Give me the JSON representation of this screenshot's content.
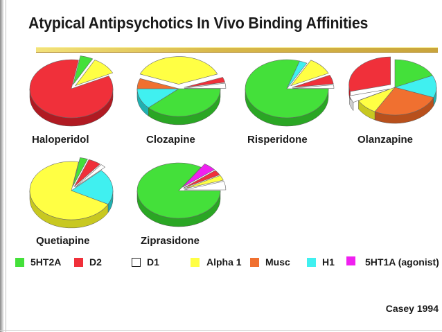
{
  "title": "Atypical Antipsychotics In Vivo Binding Affinities",
  "source": "Casey 1994",
  "receptors": [
    {
      "key": "5HT2A",
      "label": "5HT2A",
      "color": "#44e03a",
      "side": "#2aa624"
    },
    {
      "key": "D2",
      "label": "D2",
      "color": "#f0303a",
      "side": "#b01a22"
    },
    {
      "key": "D1",
      "label": "D1",
      "color": "#ffffff",
      "side": "#cfcfcf"
    },
    {
      "key": "Alpha1",
      "label": "Alpha 1",
      "color": "#ffff44",
      "side": "#c8c820"
    },
    {
      "key": "Musc",
      "label": "Musc",
      "color": "#f07030",
      "side": "#b8501c"
    },
    {
      "key": "H1",
      "label": "H1",
      "color": "#40f0f0",
      "side": "#20b0b0"
    },
    {
      "key": "5HT1A",
      "label": "5HT1A (agonist)",
      "color": "#f020f0",
      "side": "#b010b0"
    }
  ],
  "chart_data": {
    "type": "pie",
    "title": "Atypical Antipsychotics In Vivo Binding Affinities",
    "series": [
      {
        "name": "Haloperidol",
        "values": {
          "5HT2A": 5,
          "Alpha1": 10,
          "D2": 85
        }
      },
      {
        "name": "Clozapine",
        "values": {
          "5HT2A": 38,
          "H1": 12,
          "Musc": 6,
          "Alpha1": 38,
          "D2": 3,
          "D1": 3
        }
      },
      {
        "name": "Risperidone",
        "values": {
          "5HT2A": 80,
          "H1": 3,
          "Alpha1": 10,
          "D2": 5,
          "D1": 2
        }
      },
      {
        "name": "Olanzapine",
        "values": {
          "5HT2A": 18,
          "H1": 13,
          "Musc": 27,
          "Alpha1": 9,
          "D1": 4,
          "D2": 29
        }
      },
      {
        "name": "Quetiapine",
        "values": {
          "5HT2A": 3,
          "D2": 5,
          "D1": 2,
          "H1": 20,
          "Alpha1": 70
        }
      },
      {
        "name": "Ziprasidone",
        "values": {
          "5HT2A": 84,
          "5HT1A": 5,
          "D2": 3,
          "Alpha1": 3,
          "D1": 5
        }
      }
    ]
  }
}
